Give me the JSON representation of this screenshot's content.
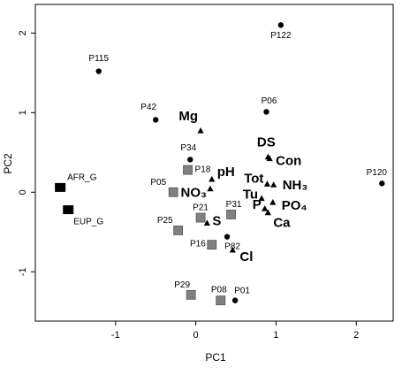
{
  "chart_data": {
    "type": "scatter",
    "xlabel": "PC1",
    "ylabel": "PC2",
    "xlim": [
      -2.0,
      2.46
    ],
    "ylim": [
      -1.62,
      2.36
    ],
    "xticks": [
      -1,
      0,
      1,
      2
    ],
    "yticks": [
      -1,
      0,
      1,
      2
    ],
    "series": [
      {
        "marker": "circle",
        "color": "#000000",
        "labels": [
          "P122",
          "P115",
          "P42",
          "P06",
          "P34",
          "P120",
          "P82",
          "P01"
        ],
        "x": [
          1.06,
          -1.21,
          -0.5,
          0.88,
          -0.07,
          2.32,
          0.39,
          0.49
        ],
        "y": [
          2.1,
          1.52,
          0.91,
          1.01,
          0.41,
          0.11,
          -0.56,
          -1.36
        ]
      },
      {
        "marker": "square",
        "color": "#808080",
        "labels": [
          "P18",
          "P05",
          "P21",
          "P31",
          "P25",
          "P16",
          "P29",
          "P08"
        ],
        "x": [
          -0.1,
          -0.28,
          0.06,
          0.44,
          -0.22,
          0.2,
          -0.06,
          0.31
        ],
        "y": [
          0.28,
          0.0,
          -0.32,
          -0.28,
          -0.48,
          -0.66,
          -1.29,
          -1.36
        ]
      },
      {
        "marker": "bigsquare",
        "color": "#000000",
        "labels": [
          "AFR_G",
          "EUP_G"
        ],
        "x": [
          -1.69,
          -1.59
        ],
        "y": [
          0.06,
          -0.22
        ]
      },
      {
        "marker": "triangle",
        "color": "#000000",
        "labels": [
          "Mg",
          "DS",
          "Con",
          "pH",
          "NO₃",
          "Tot",
          "NH₃",
          "Tu",
          "PO₄",
          "P",
          "Ca",
          "S",
          "Cl"
        ],
        "x": [
          0.06,
          0.9,
          0.92,
          0.2,
          0.18,
          0.89,
          0.97,
          0.82,
          0.96,
          0.86,
          0.9,
          0.14,
          0.46
        ],
        "y": [
          0.77,
          0.44,
          0.42,
          0.16,
          0.04,
          0.1,
          0.09,
          -0.08,
          -0.13,
          -0.21,
          -0.26,
          -0.39,
          -0.73
        ]
      }
    ]
  }
}
